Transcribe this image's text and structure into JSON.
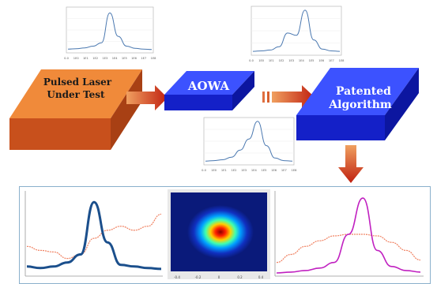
{
  "flow": {
    "laser": {
      "line1": "Pulsed Laser",
      "line2": "Under Test",
      "color": "#e8702a"
    },
    "aowa": {
      "label": "AOWA",
      "color": "#1a2ff0"
    },
    "algorithm": {
      "line1": "Patented",
      "line2": "Algorithm",
      "color": "#1a2ff0"
    },
    "arrow_color": "#c9401a"
  },
  "spectrum_insets": {
    "count": 3,
    "tick_labels": [
      "0.0",
      "1E0",
      "1E1",
      "1E2",
      "1E3",
      "1E4",
      "1E5",
      "1E6",
      "1E7",
      "1E8"
    ]
  },
  "chart_data": [
    {
      "type": "line",
      "series": [
        {
          "values": [
            0.05,
            0.06,
            0.08,
            0.12,
            0.2,
            0.9,
            0.35,
            0.12,
            0.07,
            0.05,
            0.04
          ]
        }
      ],
      "xlabel": "",
      "ylabel": ""
    },
    {
      "type": "line",
      "series": [
        {
          "values": [
            0.05,
            0.06,
            0.08,
            0.15,
            0.45,
            0.4,
            0.95,
            0.3,
            0.1,
            0.06,
            0.05
          ]
        }
      ],
      "xlabel": "",
      "ylabel": ""
    },
    {
      "type": "line",
      "series": [
        {
          "values": [
            0.05,
            0.06,
            0.08,
            0.14,
            0.3,
            0.55,
            0.95,
            0.4,
            0.12,
            0.06,
            0.05
          ]
        }
      ],
      "xlabel": "",
      "ylabel": ""
    },
    {
      "type": "line",
      "series": [
        {
          "values": [
            0.1,
            0.08,
            0.1,
            0.15,
            0.25,
            0.9,
            0.4,
            0.12,
            0.1,
            0.08,
            0.07
          ],
          "color": "#1b4f8c"
        },
        {
          "values": [
            0.35,
            0.3,
            0.28,
            0.2,
            0.25,
            0.45,
            0.55,
            0.6,
            0.55,
            0.6,
            0.75
          ],
          "color": "#f08060"
        }
      ]
    },
    {
      "type": "heatmap",
      "colormap": "jet",
      "x_ticks": [
        "-0.4",
        "-0.2",
        "0",
        "0.2",
        "0.4"
      ]
    },
    {
      "type": "line",
      "series": [
        {
          "values": [
            0.02,
            0.03,
            0.05,
            0.08,
            0.15,
            0.5,
            0.95,
            0.3,
            0.1,
            0.05,
            0.03
          ],
          "color": "#c020c0"
        },
        {
          "values": [
            0.15,
            0.25,
            0.35,
            0.42,
            0.48,
            0.5,
            0.5,
            0.48,
            0.4,
            0.3,
            0.18
          ],
          "color": "#f08060"
        }
      ]
    }
  ]
}
